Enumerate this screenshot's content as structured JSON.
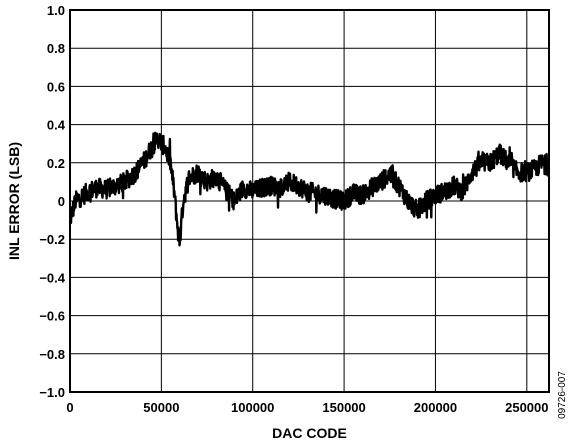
{
  "chart_data": {
    "type": "line",
    "xlabel": "DAC CODE",
    "ylabel": "INL ERROR (LSB)",
    "xlim": [
      0,
      262143
    ],
    "ylim": [
      -1.0,
      1.0
    ],
    "x_ticks": [
      0,
      50000,
      100000,
      150000,
      200000,
      250000
    ],
    "x_tick_labels": [
      "0",
      "50000",
      "100000",
      "150000",
      "200000",
      "250000"
    ],
    "y_ticks": [
      1.0,
      0.8,
      0.6,
      0.4,
      0.2,
      0,
      -0.2,
      -0.4,
      -0.6,
      -0.8,
      -1.0
    ],
    "y_tick_labels": [
      "1.0",
      "0.8",
      "0.6",
      "0.4",
      "0.2",
      "0",
      "−0.2",
      "−0.4",
      "−0.6",
      "−0.8",
      "−1.0"
    ],
    "grid": true,
    "series": [
      {
        "color": "#000000",
        "x": [
          0,
          3000,
          6000,
          10000,
          15000,
          20000,
          25000,
          30000,
          35000,
          40000,
          44000,
          48000,
          52000,
          55000,
          57000,
          59000,
          60000,
          62000,
          65000,
          70000,
          75000,
          80000,
          85000,
          90000,
          95000,
          100000,
          105000,
          110000,
          115000,
          120000,
          125000,
          130000,
          135000,
          140000,
          145000,
          150000,
          155000,
          160000,
          165000,
          170000,
          175000,
          180000,
          185000,
          190000,
          195000,
          200000,
          205000,
          210000,
          215000,
          220000,
          225000,
          230000,
          235000,
          240000,
          245000,
          250000,
          255000,
          258000,
          262143
        ],
        "y": [
          -0.1,
          0.0,
          0.02,
          0.05,
          0.07,
          0.06,
          0.08,
          0.1,
          0.14,
          0.2,
          0.27,
          0.33,
          0.28,
          0.2,
          0.05,
          -0.15,
          -0.22,
          0.0,
          0.12,
          0.15,
          0.1,
          0.13,
          0.06,
          0.0,
          0.07,
          0.05,
          0.07,
          0.08,
          0.07,
          0.1,
          0.08,
          0.05,
          0.04,
          0.03,
          0.01,
          0.0,
          0.04,
          0.03,
          0.07,
          0.1,
          0.14,
          0.08,
          0.0,
          -0.05,
          0.0,
          0.03,
          0.05,
          0.08,
          0.05,
          0.15,
          0.2,
          0.2,
          0.25,
          0.2,
          0.15,
          0.15,
          0.17,
          0.2,
          0.18
        ],
        "band_halfwidth": 0.05
      }
    ]
  },
  "figure_id": "09726-007"
}
